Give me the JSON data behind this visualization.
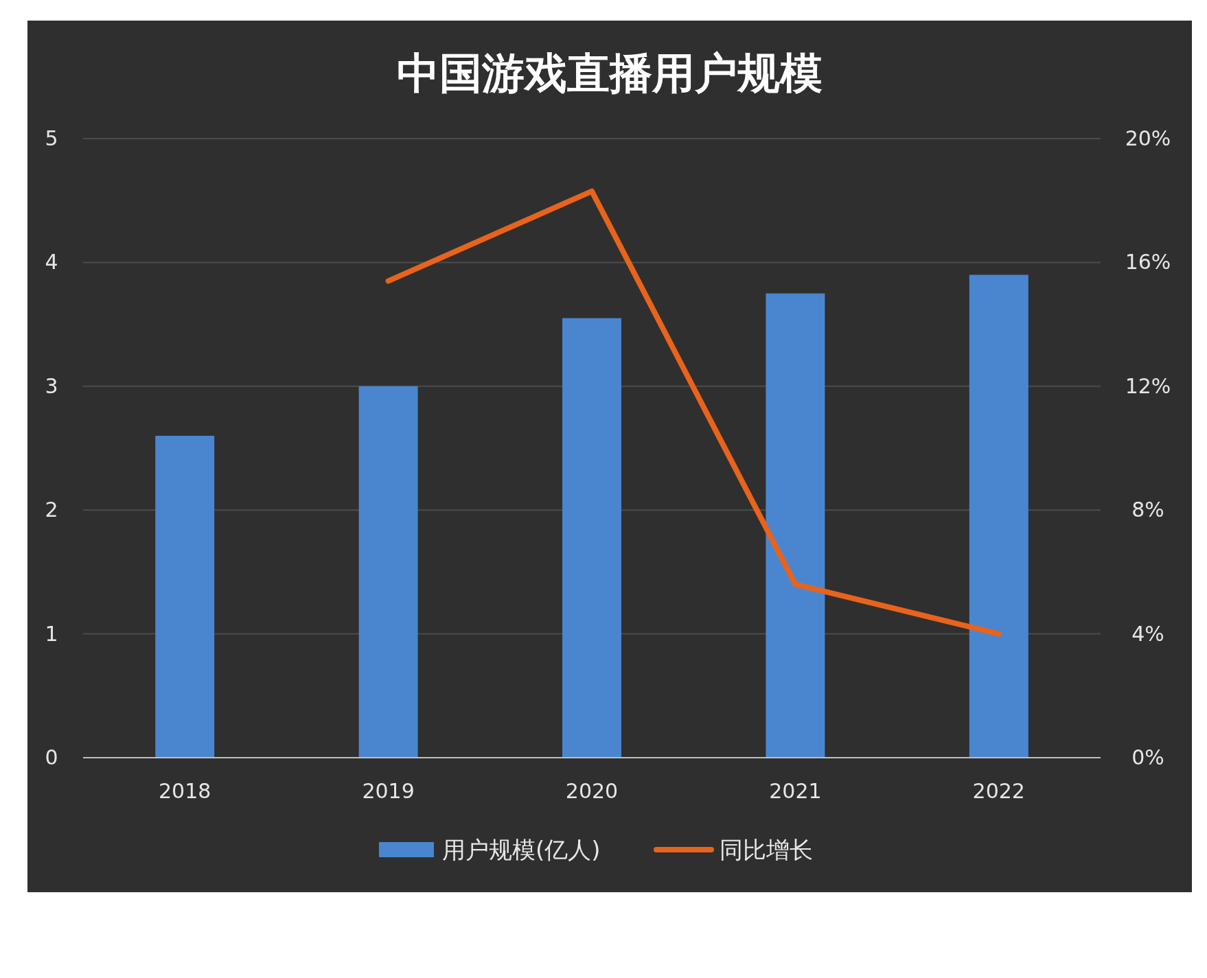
{
  "chart_data": {
    "type": "bar",
    "title": "中国游戏直播用户规模",
    "categories": [
      "2018",
      "2019",
      "2020",
      "2021",
      "2022"
    ],
    "series": [
      {
        "name": "用户规模(亿人)",
        "color": "#4a86d0",
        "values": [
          2.6,
          3.0,
          3.55,
          3.75,
          3.9
        ]
      },
      {
        "name": "同比增长",
        "type": "line",
        "axis": "y2",
        "color": "#e8631c",
        "values": [
          null,
          15.4,
          18.3,
          5.6,
          4.0
        ]
      }
    ],
    "ylim": [
      0,
      5
    ],
    "yticks": [
      0,
      1,
      2,
      3,
      4,
      5
    ],
    "y2lim": [
      0,
      20
    ],
    "y2ticks": [
      {
        "value": 0,
        "label": "0%"
      },
      {
        "value": 4,
        "label": "4%"
      },
      {
        "value": 8,
        "label": "8%"
      },
      {
        "value": 12,
        "label": "12%"
      },
      {
        "value": 16,
        "label": "16%"
      },
      {
        "value": 20,
        "label": "20%"
      }
    ],
    "grid": "y",
    "legend": "bottom"
  }
}
